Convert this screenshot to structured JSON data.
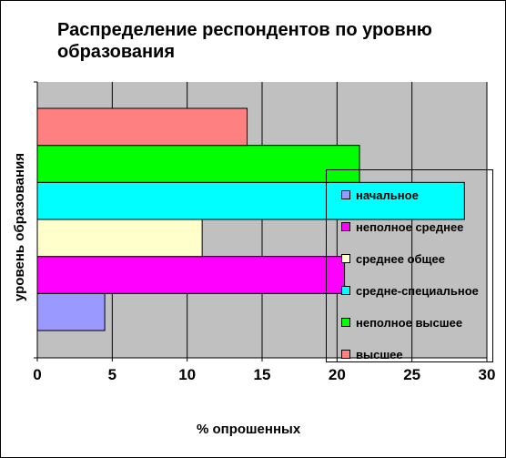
{
  "chart_data": {
    "type": "bar",
    "orientation": "horizontal",
    "title": "Распределение респондентов по уровню образования",
    "xlabel": "% опрошенных",
    "ylabel": "уровень образования",
    "xlim": [
      0,
      30
    ],
    "xticks": [
      0,
      5,
      10,
      15,
      20,
      25,
      30
    ],
    "grid": true,
    "legend_position": "right",
    "plot_background": "#c0c0c0",
    "series": [
      {
        "name": "начальное",
        "value": 4.5,
        "color": "#9999ff"
      },
      {
        "name": "неполное среднее",
        "value": 20.5,
        "color": "#ff00ff"
      },
      {
        "name": "среднее общее",
        "value": 11,
        "color": "#ffffcc"
      },
      {
        "name": "средне-специальное",
        "value": 28.5,
        "color": "#00ffff"
      },
      {
        "name": "неполное высшее",
        "value": 21.5,
        "color": "#00ff00"
      },
      {
        "name": "высшее",
        "value": 14,
        "color": "#ff8080"
      }
    ]
  }
}
